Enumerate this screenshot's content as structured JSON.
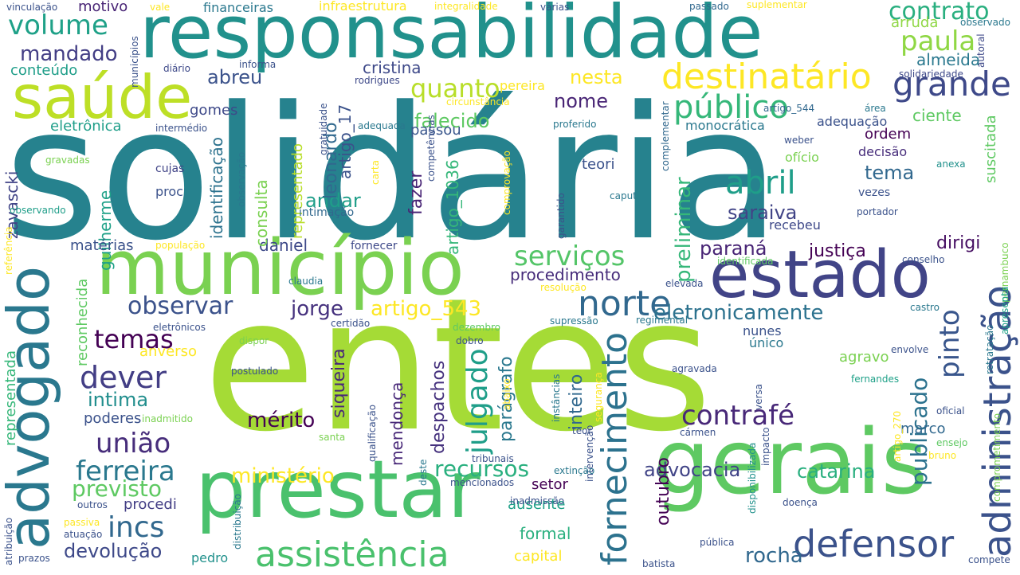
{
  "words": [
    {
      "text": "solidária",
      "color": "#26828e"
    },
    {
      "text": "entes",
      "color": "#a5db36"
    },
    {
      "text": "responsabilidade",
      "color": "#21918c"
    },
    {
      "text": "gerais",
      "color": "#5ec962"
    },
    {
      "text": "prestar",
      "color": "#4ac16d"
    },
    {
      "text": "município",
      "color": "#7ad151"
    },
    {
      "text": "advogado",
      "color": "#2a788e"
    },
    {
      "text": "estado",
      "color": "#414487"
    },
    {
      "text": "saúde",
      "color": "#bddf26"
    },
    {
      "text": "assistência",
      "color": "#4ac16d"
    },
    {
      "text": "administração",
      "color": "#3b528b"
    },
    {
      "text": "defensor",
      "color": "#3b528b"
    },
    {
      "text": "fornecimento",
      "color": "#2c728e"
    },
    {
      "text": "norte",
      "color": "#31688e"
    },
    {
      "text": "destinatário",
      "color": "#fde725"
    },
    {
      "text": "público",
      "color": "#35b779"
    },
    {
      "text": "grande",
      "color": "#3e4989"
    },
    {
      "text": "contrafé",
      "color": "#482878"
    },
    {
      "text": "dever",
      "color": "#433e85"
    },
    {
      "text": "abril",
      "color": "#1f9e89"
    },
    {
      "text": "serviços",
      "color": "#54c568"
    },
    {
      "text": "união",
      "color": "#472d7b"
    },
    {
      "text": "ferreira",
      "color": "#2a788e"
    },
    {
      "text": "incs",
      "color": "#31688e"
    },
    {
      "text": "volume",
      "color": "#1fa188"
    },
    {
      "text": "contrato",
      "color": "#29af7f"
    },
    {
      "text": "paula",
      "color": "#8fd744"
    },
    {
      "text": "quanto",
      "color": "#b8de29"
    },
    {
      "text": "pinto",
      "color": "#39568c"
    },
    {
      "text": "preliminar",
      "color": "#35b779"
    },
    {
      "text": "observar",
      "color": "#3b528b"
    },
    {
      "text": "temas",
      "color": "#440154"
    },
    {
      "text": "eletronicamente",
      "color": "#2c728e"
    },
    {
      "text": "julgado",
      "color": "#1f9e89"
    },
    {
      "text": "publicado",
      "color": "#2c728e"
    },
    {
      "text": "mérito",
      "color": "#440154"
    },
    {
      "text": "previsto",
      "color": "#5ec962"
    },
    {
      "text": "recursos",
      "color": "#2ab07f"
    },
    {
      "text": "ministério",
      "color": "#fde725"
    },
    {
      "text": "artigo_543",
      "color": "#fde725"
    },
    {
      "text": "devolução",
      "color": "#3e4989"
    },
    {
      "text": "rocha",
      "color": "#31688e"
    },
    {
      "text": "catarina",
      "color": "#29af7f"
    },
    {
      "text": "advocacia",
      "color": "#414487"
    },
    {
      "text": "intima",
      "color": "#218e8d"
    },
    {
      "text": "mandado",
      "color": "#433e85"
    },
    {
      "text": "nesta",
      "color": "#fde725"
    },
    {
      "text": "abreu",
      "color": "#3b528b"
    },
    {
      "text": "falecido",
      "color": "#5ec962"
    },
    {
      "text": "nome",
      "color": "#482475"
    },
    {
      "text": "tema",
      "color": "#31688e"
    },
    {
      "text": "saraiva",
      "color": "#414487"
    },
    {
      "text": "paraná",
      "color": "#482475"
    },
    {
      "text": "justiça",
      "color": "#440154"
    },
    {
      "text": "dirigi",
      "color": "#471063"
    },
    {
      "text": "procedimento",
      "color": "#472d7b"
    },
    {
      "text": "jorge",
      "color": "#46327e"
    },
    {
      "text": "andar",
      "color": "#1f9e89"
    },
    {
      "text": "daniel",
      "color": "#3e4989"
    },
    {
      "text": "siqueira",
      "color": "#482878"
    },
    {
      "text": "despachos",
      "color": "#46327e"
    },
    {
      "text": "mendonça",
      "color": "#482878"
    },
    {
      "text": "parágrafo",
      "color": "#2a788e"
    },
    {
      "text": "inteiro",
      "color": "#31688e"
    },
    {
      "text": "outubro",
      "color": "#440154"
    },
    {
      "text": "leonardo",
      "color": "#31688e"
    },
    {
      "text": "artigo_17",
      "color": "#3b528b"
    },
    {
      "text": "cristina",
      "color": "#3e4989"
    },
    {
      "text": "passou",
      "color": "#39568c"
    },
    {
      "text": "fazer",
      "color": "#482475"
    },
    {
      "text": "artigo_1036",
      "color": "#35b779"
    },
    {
      "text": "consulta",
      "color": "#7ad151"
    },
    {
      "text": "representado",
      "color": "#b8de29"
    },
    {
      "text": "identificação",
      "color": "#2c728e"
    },
    {
      "text": "guilherme",
      "color": "#1fa188"
    },
    {
      "text": "zavascki",
      "color": "#414487"
    },
    {
      "text": "representada",
      "color": "#35b779"
    },
    {
      "text": "reconhecida",
      "color": "#5ec962"
    },
    {
      "text": "gomes",
      "color": "#3e4989"
    },
    {
      "text": "eletrônica",
      "color": "#1f9e89"
    },
    {
      "text": "matérias",
      "color": "#3b528b"
    },
    {
      "text": "motivo",
      "color": "#482475"
    },
    {
      "text": "conteúdo",
      "color": "#1f9e89"
    },
    {
      "text": "almeida",
      "color": "#2a788e"
    },
    {
      "text": "arruda",
      "color": "#8fd744"
    },
    {
      "text": "ciente",
      "color": "#5ec962"
    },
    {
      "text": "ordem",
      "color": "#440154"
    },
    {
      "text": "decisão",
      "color": "#472d7b"
    },
    {
      "text": "teori",
      "color": "#3b528b"
    },
    {
      "text": "recebeu",
      "color": "#3e4989"
    },
    {
      "text": "monocrática",
      "color": "#2a788e"
    },
    {
      "text": "adequação",
      "color": "#3b528b"
    },
    {
      "text": "suscitada",
      "color": "#5ec962"
    },
    {
      "text": "agravo",
      "color": "#7ad151"
    },
    {
      "text": "nunes",
      "color": "#3b528b"
    },
    {
      "text": "único",
      "color": "#2a788e"
    },
    {
      "text": "marco",
      "color": "#31688e"
    },
    {
      "text": "setor",
      "color": "#440154"
    },
    {
      "text": "formal",
      "color": "#2ab07f"
    },
    {
      "text": "ausente",
      "color": "#1fa188"
    },
    {
      "text": "capital",
      "color": "#fde725"
    },
    {
      "text": "anverso",
      "color": "#fde725"
    },
    {
      "text": "procedi",
      "color": "#433e85"
    },
    {
      "text": "poderes",
      "color": "#3b528b"
    },
    {
      "text": "pedro",
      "color": "#21918c"
    },
    {
      "text": "proc",
      "color": "#3b528b"
    },
    {
      "text": "cujas",
      "color": "#414487"
    },
    {
      "text": "gravadas",
      "color": "#7ad151"
    },
    {
      "text": "observando",
      "color": "#1f9e89"
    },
    {
      "text": "população",
      "color": "#fde725"
    },
    {
      "text": "fornecer",
      "color": "#3e4989"
    },
    {
      "text": "intimação",
      "color": "#31688e"
    },
    {
      "text": "infraestrutura",
      "color": "#fde725"
    },
    {
      "text": "financeiras",
      "color": "#2a788e"
    },
    {
      "text": "integralidade",
      "color": "#fde725"
    },
    {
      "text": "várias",
      "color": "#3b528b"
    },
    {
      "text": "passado",
      "color": "#31688e"
    },
    {
      "text": "suplementar",
      "color": "#fde725"
    },
    {
      "text": "observado",
      "color": "#2a788e"
    },
    {
      "text": "autoral",
      "color": "#3e4989"
    },
    {
      "text": "solidariedade",
      "color": "#3e4989"
    },
    {
      "text": "vinculação",
      "color": "#3b528b"
    },
    {
      "text": "vale",
      "color": "#fde725"
    },
    {
      "text": "municípios",
      "color": "#3b528b"
    },
    {
      "text": "diário",
      "color": "#3e4989"
    },
    {
      "text": "informa",
      "color": "#3b528b"
    },
    {
      "text": "rodrigues",
      "color": "#3e4989"
    },
    {
      "text": "pereira",
      "color": "#fde725"
    },
    {
      "text": "circunstância",
      "color": "#fde725"
    },
    {
      "text": "artigo_544",
      "color": "#31688e"
    },
    {
      "text": "área",
      "color": "#2a788e"
    },
    {
      "text": "adequada",
      "color": "#2a788e"
    },
    {
      "text": "proferido",
      "color": "#2a788e"
    },
    {
      "text": "gratuidade",
      "color": "#3b528b"
    },
    {
      "text": "competências",
      "color": "#3b528b"
    },
    {
      "text": "intermédio",
      "color": "#3b528b"
    },
    {
      "text": "complementar",
      "color": "#31688e"
    },
    {
      "text": "weber",
      "color": "#3b528b"
    },
    {
      "text": "ofício",
      "color": "#7ad151"
    },
    {
      "text": "anexa",
      "color": "#21918c"
    },
    {
      "text": "carta",
      "color": "#fde725"
    },
    {
      "text": "comprovação",
      "color": "#fde725"
    },
    {
      "text": "garantido",
      "color": "#3b528b"
    },
    {
      "text": "caput",
      "color": "#2a788e"
    },
    {
      "text": "vezes",
      "color": "#3b528b"
    },
    {
      "text": "portador",
      "color": "#3b528b"
    },
    {
      "text": "observação",
      "color": "#2a788e"
    },
    {
      "text": "referência",
      "color": "#fde725"
    },
    {
      "text": "claudia",
      "color": "#2a788e"
    },
    {
      "text": "resolução",
      "color": "#fde725"
    },
    {
      "text": "elevada",
      "color": "#3b528b"
    },
    {
      "text": "identificada",
      "color": "#5ec962"
    },
    {
      "text": "conselho",
      "color": "#3b528b"
    },
    {
      "text": "pernambuco",
      "color": "#7ad151"
    },
    {
      "text": "retratação",
      "color": "#2a788e"
    },
    {
      "text": "apresenta",
      "color": "#1fa188"
    },
    {
      "text": "castro",
      "color": "#2a788e"
    },
    {
      "text": "envolve",
      "color": "#3b528b"
    },
    {
      "text": "regimental",
      "color": "#2a788e"
    },
    {
      "text": "supressão",
      "color": "#2a788e"
    },
    {
      "text": "certidão",
      "color": "#3b528b"
    },
    {
      "text": "dezembro",
      "color": "#5ec962"
    },
    {
      "text": "dobro",
      "color": "#3b528b"
    },
    {
      "text": "eletrônicos",
      "color": "#3b528b"
    },
    {
      "text": "dispor",
      "color": "#7ad151"
    },
    {
      "text": "postulado",
      "color": "#3b528b"
    },
    {
      "text": "agravada",
      "color": "#3b528b"
    },
    {
      "text": "versa",
      "color": "#3b528b"
    },
    {
      "text": "fernandes",
      "color": "#1fa188"
    },
    {
      "text": "artigo_270",
      "color": "#fde725"
    },
    {
      "text": "oficial",
      "color": "#3b528b"
    },
    {
      "text": "ensejo",
      "color": "#5ec962"
    },
    {
      "text": "bruno",
      "color": "#fde725"
    },
    {
      "text": "cármen",
      "color": "#3b528b"
    },
    {
      "text": "teor",
      "color": "#3b528b"
    },
    {
      "text": "santa",
      "color": "#7ad151"
    },
    {
      "text": "inadmitido",
      "color": "#7ad151"
    },
    {
      "text": "instâncias",
      "color": "#2a788e"
    },
    {
      "text": "segurança",
      "color": "#fde725"
    },
    {
      "text": "abaixo",
      "color": "#fde725"
    },
    {
      "text": "qualificação",
      "color": "#3b528b"
    },
    {
      "text": "deste",
      "color": "#2a788e"
    },
    {
      "text": "intervenção",
      "color": "#3b528b"
    },
    {
      "text": "impacto",
      "color": "#3b528b"
    },
    {
      "text": "disponibilizada",
      "color": "#21918c"
    },
    {
      "text": "tribunais",
      "color": "#3b528b"
    },
    {
      "text": "extinção",
      "color": "#2a788e"
    },
    {
      "text": "mencionados",
      "color": "#3b528b"
    },
    {
      "text": "inadmissão",
      "color": "#3b528b"
    },
    {
      "text": "doença",
      "color": "#3b528b"
    },
    {
      "text": "comprometimento",
      "color": "#7ad151"
    },
    {
      "text": "compete",
      "color": "#3b528b"
    },
    {
      "text": "pública",
      "color": "#3b528b"
    },
    {
      "text": "batista",
      "color": "#3b528b"
    },
    {
      "text": "outros",
      "color": "#3b528b"
    },
    {
      "text": "passiva",
      "color": "#fde725"
    },
    {
      "text": "atuação",
      "color": "#3b528b"
    },
    {
      "text": "distribuição",
      "color": "#2a788e"
    },
    {
      "text": "atribuição",
      "color": "#3b528b"
    },
    {
      "text": "prazos",
      "color": "#3b528b"
    }
  ]
}
